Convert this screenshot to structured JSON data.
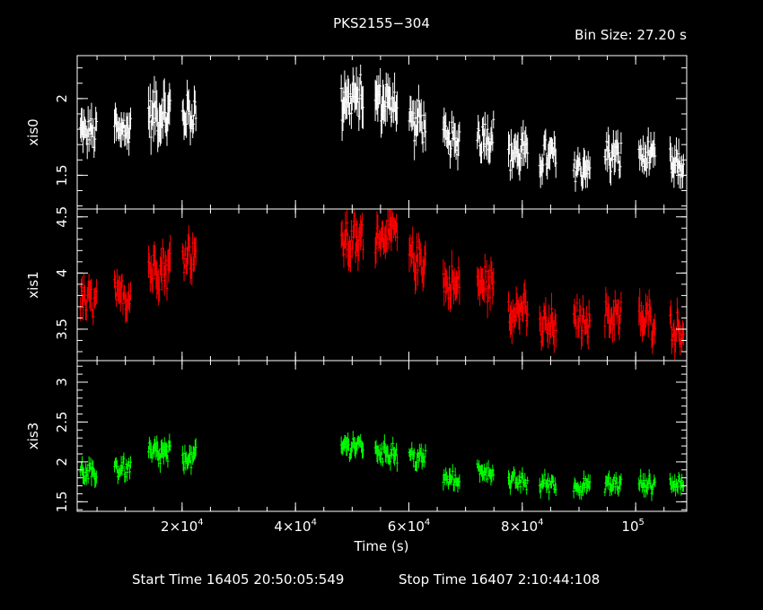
{
  "header": {
    "title": "PKS2155−304",
    "bin_size": "Bin Size: 27.20 s"
  },
  "footer": {
    "start_time": "Start Time 16405 20:50:05:549",
    "stop_time": "Stop Time 16407  2:10:44:108"
  },
  "colors": {
    "xis0": "#ffffff",
    "xis1": "#ff0000",
    "xis3": "#00ff00",
    "background": "#000000",
    "axes": "#ffffff"
  },
  "chart_data": {
    "type": "scatter",
    "title": "PKS2155−304",
    "xlabel": "Time (s)",
    "xlim": [
      1500,
      109000
    ],
    "x_ticks": [
      {
        "value": 20000,
        "mantissa": "2",
        "exp": "4"
      },
      {
        "value": 40000,
        "mantissa": "4",
        "exp": "4"
      },
      {
        "value": 60000,
        "mantissa": "6",
        "exp": "4"
      },
      {
        "value": 80000,
        "mantissa": "8",
        "exp": "4"
      },
      {
        "value": 100000,
        "mantissa": "10",
        "exp": "5"
      }
    ],
    "panels": [
      {
        "name": "xis0",
        "ylabel": "xis0",
        "ylim": [
          1.28,
          2.28
        ],
        "yticks": [
          {
            "value": 1.5,
            "label": "1.5"
          },
          {
            "value": 2,
            "label": "2"
          }
        ],
        "series": [
          {
            "t0": 2000,
            "t1": 5000,
            "mean": 1.78,
            "err": 0.14
          },
          {
            "t0": 8000,
            "t1": 11000,
            "mean": 1.8,
            "err": 0.15
          },
          {
            "t0": 14000,
            "t1": 18000,
            "mean": 1.9,
            "err": 0.18
          },
          {
            "t0": 20000,
            "t1": 22500,
            "mean": 1.9,
            "err": 0.15
          },
          {
            "t0": 48000,
            "t1": 52000,
            "mean": 2.0,
            "err": 0.18
          },
          {
            "t0": 54000,
            "t1": 58000,
            "mean": 1.98,
            "err": 0.17
          },
          {
            "t0": 60000,
            "t1": 63000,
            "mean": 1.85,
            "err": 0.16
          },
          {
            "t0": 66000,
            "t1": 69000,
            "mean": 1.72,
            "err": 0.14
          },
          {
            "t0": 72000,
            "t1": 75000,
            "mean": 1.76,
            "err": 0.15
          },
          {
            "t0": 77500,
            "t1": 81000,
            "mean": 1.65,
            "err": 0.15
          },
          {
            "t0": 83000,
            "t1": 86000,
            "mean": 1.62,
            "err": 0.14
          },
          {
            "t0": 89000,
            "t1": 92000,
            "mean": 1.55,
            "err": 0.13
          },
          {
            "t0": 94500,
            "t1": 97500,
            "mean": 1.63,
            "err": 0.14
          },
          {
            "t0": 100500,
            "t1": 103500,
            "mean": 1.62,
            "err": 0.13
          },
          {
            "t0": 106000,
            "t1": 108500,
            "mean": 1.56,
            "err": 0.13
          }
        ]
      },
      {
        "name": "xis1",
        "ylabel": "xis1",
        "ylim": [
          3.22,
          4.57
        ],
        "yticks": [
          {
            "value": 3.5,
            "label": "3.5"
          },
          {
            "value": 4,
            "label": "4"
          },
          {
            "value": 4.5,
            "label": "4.5"
          }
        ],
        "series": [
          {
            "t0": 2000,
            "t1": 5000,
            "mean": 3.75,
            "err": 0.18
          },
          {
            "t0": 8000,
            "t1": 11000,
            "mean": 3.8,
            "err": 0.18
          },
          {
            "t0": 14000,
            "t1": 18000,
            "mean": 4.05,
            "err": 0.22
          },
          {
            "t0": 20000,
            "t1": 22500,
            "mean": 4.18,
            "err": 0.2
          },
          {
            "t0": 48000,
            "t1": 52000,
            "mean": 4.28,
            "err": 0.22
          },
          {
            "t0": 54000,
            "t1": 58000,
            "mean": 4.35,
            "err": 0.2
          },
          {
            "t0": 60000,
            "t1": 63000,
            "mean": 4.12,
            "err": 0.2
          },
          {
            "t0": 66000,
            "t1": 69000,
            "mean": 3.9,
            "err": 0.2
          },
          {
            "t0": 72000,
            "t1": 75000,
            "mean": 3.9,
            "err": 0.2
          },
          {
            "t0": 77500,
            "t1": 81000,
            "mean": 3.68,
            "err": 0.2
          },
          {
            "t0": 83000,
            "t1": 86000,
            "mean": 3.52,
            "err": 0.2
          },
          {
            "t0": 89000,
            "t1": 92000,
            "mean": 3.58,
            "err": 0.18
          },
          {
            "t0": 94500,
            "t1": 97500,
            "mean": 3.62,
            "err": 0.2
          },
          {
            "t0": 100500,
            "t1": 103500,
            "mean": 3.58,
            "err": 0.2
          },
          {
            "t0": 106000,
            "t1": 108500,
            "mean": 3.5,
            "err": 0.18
          }
        ]
      },
      {
        "name": "xis3",
        "ylabel": "xis3",
        "ylim": [
          1.38,
          3.27
        ],
        "yticks": [
          {
            "value": 1.5,
            "label": "1.5"
          },
          {
            "value": 2,
            "label": "2"
          },
          {
            "value": 2.5,
            "label": "2.5"
          },
          {
            "value": 3,
            "label": "3"
          }
        ],
        "series": [
          {
            "t0": 2000,
            "t1": 5000,
            "mean": 1.85,
            "err": 0.15
          },
          {
            "t0": 8000,
            "t1": 11000,
            "mean": 1.92,
            "err": 0.15
          },
          {
            "t0": 14000,
            "t1": 18000,
            "mean": 2.1,
            "err": 0.18
          },
          {
            "t0": 20000,
            "t1": 22500,
            "mean": 2.05,
            "err": 0.16
          },
          {
            "t0": 48000,
            "t1": 52000,
            "mean": 2.2,
            "err": 0.16
          },
          {
            "t0": 54000,
            "t1": 58000,
            "mean": 2.12,
            "err": 0.16
          },
          {
            "t0": 60000,
            "t1": 63000,
            "mean": 2.05,
            "err": 0.15
          },
          {
            "t0": 66000,
            "t1": 69000,
            "mean": 1.78,
            "err": 0.13
          },
          {
            "t0": 72000,
            "t1": 75000,
            "mean": 1.88,
            "err": 0.14
          },
          {
            "t0": 77500,
            "t1": 81000,
            "mean": 1.75,
            "err": 0.13
          },
          {
            "t0": 83000,
            "t1": 86000,
            "mean": 1.73,
            "err": 0.13
          },
          {
            "t0": 89000,
            "t1": 92000,
            "mean": 1.7,
            "err": 0.13
          },
          {
            "t0": 94500,
            "t1": 97500,
            "mean": 1.72,
            "err": 0.13
          },
          {
            "t0": 100500,
            "t1": 103500,
            "mean": 1.72,
            "err": 0.13
          },
          {
            "t0": 106000,
            "t1": 108500,
            "mean": 1.72,
            "err": 0.13
          }
        ]
      }
    ]
  }
}
